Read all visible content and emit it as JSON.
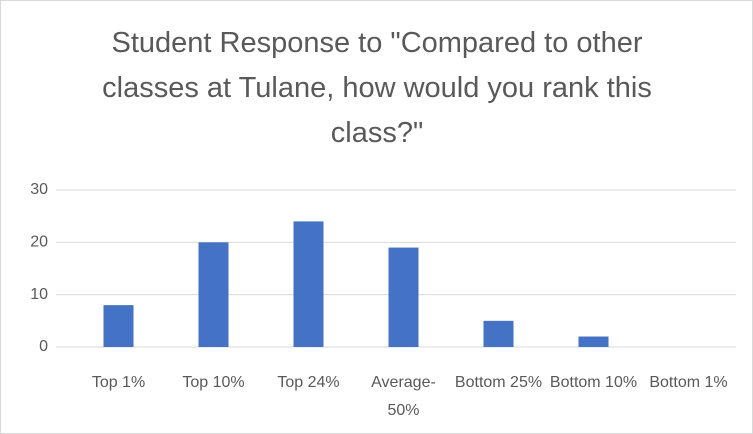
{
  "chart_data": {
    "type": "bar",
    "title": "Student Response to \"Compared to other classes at Tulane, how would you rank this class?\"",
    "categories": [
      "Top 1%",
      "Top 10%",
      "Top 24%",
      "Average-50%",
      "Bottom 25%",
      "Bottom 10%",
      "Bottom 1%"
    ],
    "values": [
      8,
      20,
      24,
      19,
      5,
      2,
      0
    ],
    "color": "#4472c4",
    "ylim": [
      0,
      30
    ],
    "yticks": [
      0,
      10,
      20,
      30
    ],
    "grid": true
  }
}
